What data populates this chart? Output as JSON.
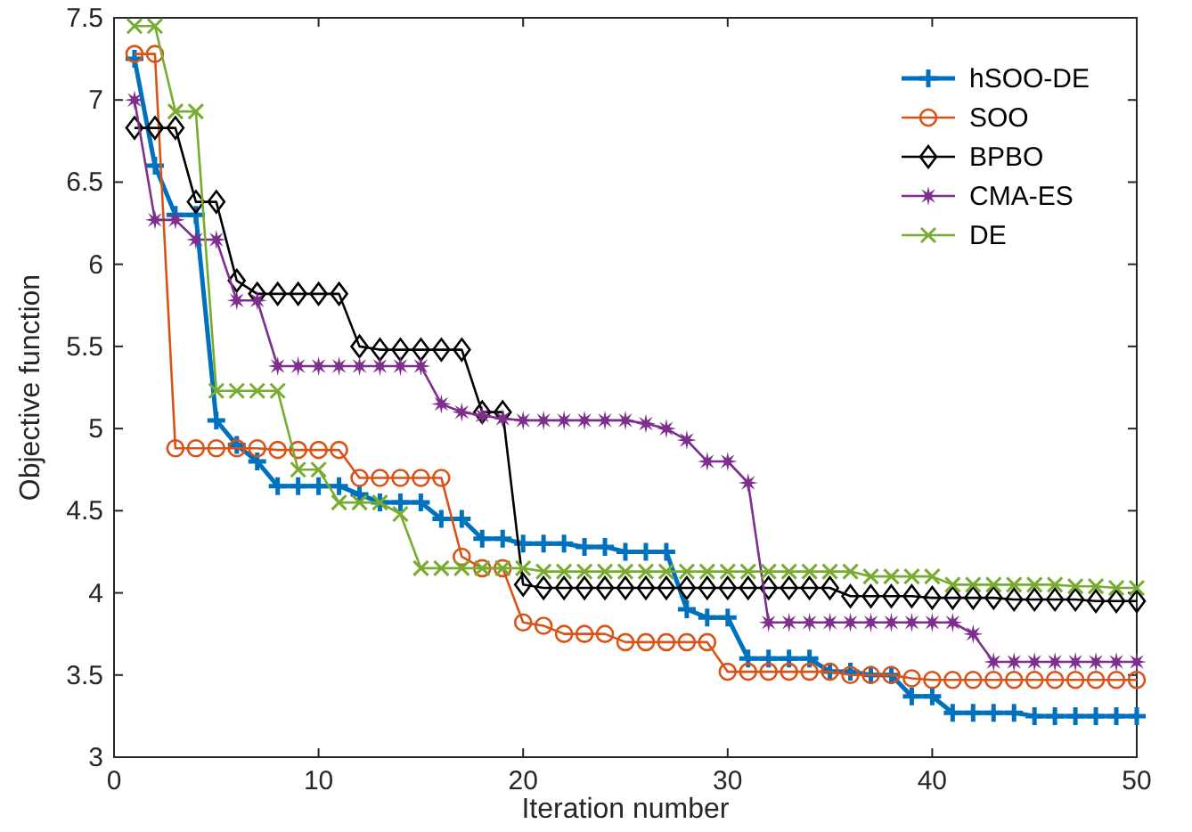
{
  "chart_data": {
    "type": "line",
    "xlabel": "Iteration number",
    "ylabel": "Objective function",
    "x": [
      1,
      2,
      3,
      4,
      5,
      6,
      7,
      8,
      9,
      10,
      11,
      12,
      13,
      14,
      15,
      16,
      17,
      18,
      19,
      20,
      21,
      22,
      23,
      24,
      25,
      26,
      27,
      28,
      29,
      30,
      31,
      32,
      33,
      34,
      35,
      36,
      37,
      38,
      39,
      40,
      41,
      42,
      43,
      44,
      45,
      46,
      47,
      48,
      49,
      50
    ],
    "xlim": [
      0,
      50
    ],
    "xticks": [
      0,
      10,
      20,
      30,
      40,
      50
    ],
    "ylim": [
      3,
      7.5
    ],
    "yticks": [
      3,
      3.5,
      4,
      4.5,
      5,
      5.5,
      6,
      6.5,
      7,
      7.5
    ],
    "grid": false,
    "legend": "top right",
    "series": [
      {
        "name": "hSOO-DE",
        "color": "#0072bd",
        "marker": "plus",
        "values": [
          7.25,
          6.6,
          6.3,
          6.3,
          5.05,
          4.9,
          4.8,
          4.65,
          4.65,
          4.65,
          4.65,
          4.6,
          4.55,
          4.55,
          4.55,
          4.45,
          4.45,
          4.33,
          4.33,
          4.3,
          4.3,
          4.3,
          4.28,
          4.28,
          4.25,
          4.25,
          4.25,
          3.9,
          3.85,
          3.85,
          3.6,
          3.6,
          3.6,
          3.6,
          3.52,
          3.52,
          3.5,
          3.5,
          3.37,
          3.37,
          3.27,
          3.27,
          3.27,
          3.27,
          3.25,
          3.25,
          3.25,
          3.25,
          3.25,
          3.25
        ]
      },
      {
        "name": "SOO",
        "color": "#d95319",
        "marker": "circle",
        "values": [
          7.28,
          7.28,
          4.88,
          4.88,
          4.88,
          4.88,
          4.88,
          4.87,
          4.87,
          4.87,
          4.87,
          4.7,
          4.7,
          4.7,
          4.7,
          4.7,
          4.22,
          4.15,
          4.15,
          3.82,
          3.8,
          3.75,
          3.75,
          3.75,
          3.7,
          3.7,
          3.7,
          3.7,
          3.7,
          3.52,
          3.52,
          3.52,
          3.52,
          3.52,
          3.52,
          3.5,
          3.5,
          3.5,
          3.48,
          3.47,
          3.47,
          3.47,
          3.47,
          3.47,
          3.47,
          3.47,
          3.47,
          3.47,
          3.47,
          3.47
        ]
      },
      {
        "name": "BPBO",
        "color": "#000000",
        "marker": "diamond",
        "values": [
          6.83,
          6.83,
          6.83,
          6.38,
          6.38,
          5.9,
          5.82,
          5.82,
          5.82,
          5.82,
          5.82,
          5.5,
          5.48,
          5.48,
          5.48,
          5.48,
          5.48,
          5.1,
          5.1,
          4.05,
          4.03,
          4.03,
          4.03,
          4.03,
          4.03,
          4.03,
          4.03,
          4.03,
          4.03,
          4.03,
          4.03,
          4.03,
          4.03,
          4.03,
          4.03,
          3.98,
          3.98,
          3.98,
          3.98,
          3.97,
          3.97,
          3.97,
          3.97,
          3.96,
          3.96,
          3.96,
          3.96,
          3.95,
          3.95,
          3.95
        ]
      },
      {
        "name": "CMA-ES",
        "color": "#7e2f8e",
        "marker": "star",
        "values": [
          7.0,
          6.27,
          6.27,
          6.15,
          6.15,
          5.78,
          5.78,
          5.38,
          5.38,
          5.38,
          5.38,
          5.38,
          5.38,
          5.38,
          5.38,
          5.15,
          5.1,
          5.08,
          5.06,
          5.05,
          5.05,
          5.05,
          5.05,
          5.05,
          5.05,
          5.03,
          5.0,
          4.93,
          4.8,
          4.8,
          4.67,
          3.82,
          3.82,
          3.82,
          3.82,
          3.82,
          3.82,
          3.82,
          3.82,
          3.82,
          3.82,
          3.75,
          3.58,
          3.58,
          3.58,
          3.58,
          3.58,
          3.58,
          3.58,
          3.58
        ]
      },
      {
        "name": "DE",
        "color": "#77ac30",
        "marker": "cross",
        "values": [
          7.45,
          7.45,
          6.93,
          6.93,
          5.23,
          5.23,
          5.23,
          5.23,
          4.75,
          4.75,
          4.55,
          4.55,
          4.55,
          4.48,
          4.15,
          4.15,
          4.15,
          4.15,
          4.15,
          4.15,
          4.13,
          4.13,
          4.13,
          4.13,
          4.13,
          4.13,
          4.13,
          4.13,
          4.13,
          4.13,
          4.13,
          4.13,
          4.13,
          4.13,
          4.13,
          4.13,
          4.1,
          4.1,
          4.1,
          4.1,
          4.05,
          4.05,
          4.05,
          4.05,
          4.05,
          4.05,
          4.04,
          4.04,
          4.03,
          4.03
        ]
      }
    ]
  }
}
